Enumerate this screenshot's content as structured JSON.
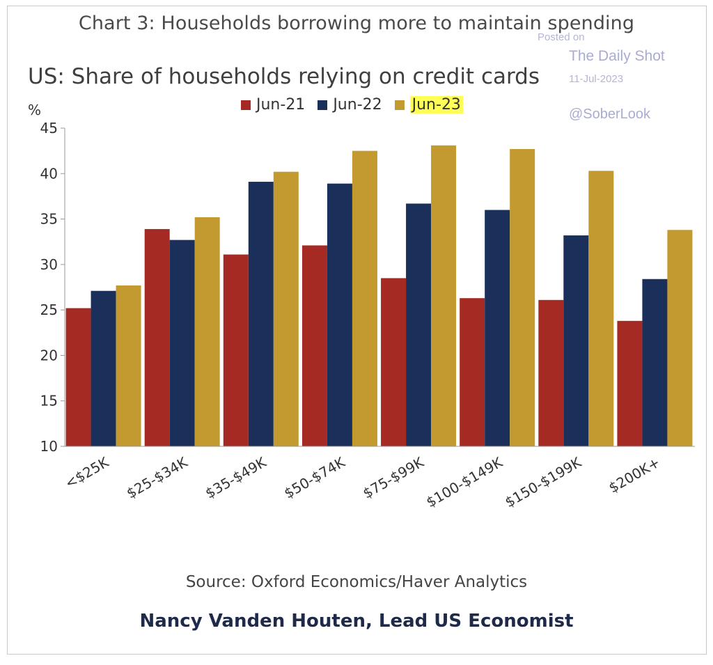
{
  "heading": "Chart 3: Households borrowing more to maintain spending",
  "watermark": {
    "posted": "Posted on",
    "site": "The Daily Shot",
    "date": "11-Jul-2023",
    "handle": "@SoberLook"
  },
  "source": "Source: Oxford Economics/Haver Analytics",
  "author": "Nancy Vanden Houten, Lead US Economist",
  "colors": {
    "Jun-21": "#a52a23",
    "Jun-22": "#1b2f5b",
    "Jun-23": "#c39a30",
    "legend_highlight": "#ffff55"
  },
  "chart_data": {
    "type": "bar",
    "title": "US: Share of households relying on credit cards",
    "ylabel": "%",
    "xlabel": "",
    "categories": [
      "<$25K",
      "$25-$34K",
      "$35-$49K",
      "$50-$74K",
      "$75-$99K",
      "$100-$149K",
      "$150-$199K",
      "$200K+"
    ],
    "series": [
      {
        "name": "Jun-21",
        "values": [
          25.2,
          33.9,
          31.1,
          32.1,
          28.5,
          26.3,
          26.1,
          23.8
        ]
      },
      {
        "name": "Jun-22",
        "values": [
          27.1,
          32.7,
          39.1,
          38.9,
          36.7,
          36.0,
          33.2,
          28.4
        ]
      },
      {
        "name": "Jun-23",
        "values": [
          27.7,
          35.2,
          40.2,
          42.5,
          43.1,
          42.7,
          40.3,
          33.8
        ]
      }
    ],
    "ylim": [
      10,
      45
    ],
    "yticks": [
      10,
      15,
      20,
      25,
      30,
      35,
      40,
      45
    ],
    "legend_position": "top",
    "grid": false
  }
}
